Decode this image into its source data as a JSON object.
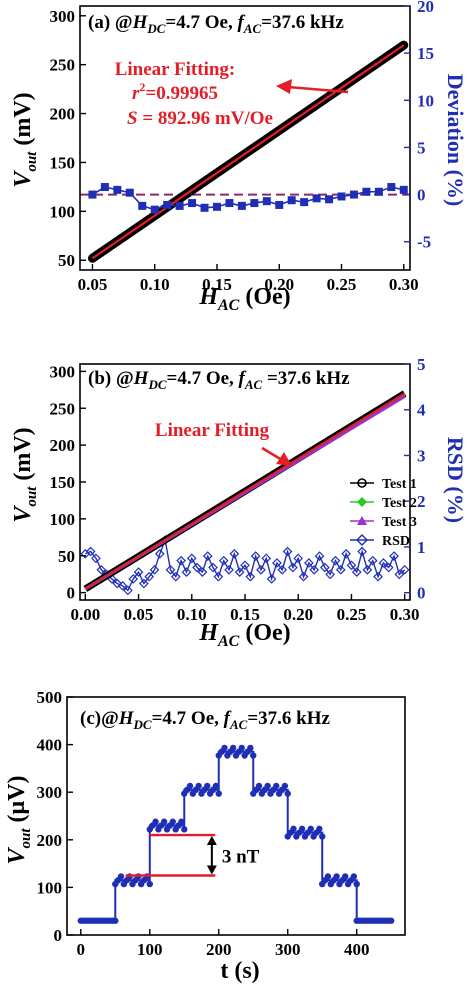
{
  "colors": {
    "black": "#000000",
    "red": "#e41e26",
    "blue": "#1f2fb5",
    "green": "#22cc22",
    "purple": "#9933cc",
    "dashed_purple": "#8a2a6a"
  },
  "chart_data": [
    {
      "type": "line",
      "panel_label": "(a) @H",
      "panel_title_parts": [
        "(a) @",
        "H",
        "DC",
        "=4.7 Oe, ",
        "f",
        "AC",
        "=37.6 kHz"
      ],
      "xlabel": "H",
      "xlabel_sub": "AC",
      "xlabel_unit": " (Oe)",
      "ylabel": "V",
      "ylabel_sub": "out",
      "ylabel_unit": " (mV)",
      "y2label": "Deviation (%)",
      "xlim": [
        0.04,
        0.305
      ],
      "ylim": [
        40,
        310
      ],
      "y2lim": [
        -8,
        20
      ],
      "xticks": [
        0.05,
        0.1,
        0.15,
        0.2,
        0.25,
        0.3
      ],
      "xtick_labels": [
        "0.05",
        "0.10",
        "0.15",
        "0.20",
        "0.25",
        "0.30"
      ],
      "yticks": [
        50,
        100,
        150,
        200,
        250,
        300
      ],
      "ytick_labels": [
        "50",
        "100",
        "150",
        "200",
        "250",
        "300"
      ],
      "y2ticks": [
        -5,
        0,
        5,
        10,
        15,
        20
      ],
      "y2tick_labels": [
        "-5",
        "0",
        "5",
        "10",
        "15",
        "20"
      ],
      "annotation_lines": [
        "Linear Fitting:",
        "r²=0.99965",
        "S = 892.96 mV/Oe"
      ],
      "r2_parts": [
        "r",
        "2",
        "=0.99965"
      ],
      "s_parts": [
        "S",
        " = 892.96 mV/Oe"
      ],
      "series": [
        {
          "axis": "left",
          "x_start": 0.05,
          "x_end": 0.3,
          "y_start": 52,
          "y_end": 270
        },
        {
          "name": "Linear Fitting",
          "axis": "left",
          "x_start": 0.05,
          "x_end": 0.3,
          "y_start": 52,
          "y_end": 270
        },
        {
          "axis": "right",
          "x": [
            0.05,
            0.06,
            0.07,
            0.08,
            0.09,
            0.1,
            0.11,
            0.12,
            0.13,
            0.14,
            0.15,
            0.16,
            0.17,
            0.18,
            0.19,
            0.2,
            0.21,
            0.22,
            0.23,
            0.24,
            0.25,
            0.26,
            0.27,
            0.28,
            0.29,
            0.3
          ],
          "values": [
            0,
            0.8,
            0.5,
            0.2,
            -1.2,
            -1.6,
            -1.1,
            -1.2,
            -0.9,
            -1.4,
            -1.3,
            -0.9,
            -1.2,
            -0.9,
            -0.7,
            -1.1,
            -0.6,
            -0.8,
            -0.4,
            -0.5,
            -0.2,
            0,
            0.3,
            0.3,
            0.8,
            0.5
          ]
        },
        {
          "axis": "right",
          "constant": 0
        }
      ]
    },
    {
      "type": "line",
      "panel_title_parts": [
        "(b) @",
        "H",
        "DC",
        "=4.7 Oe, ",
        "f",
        "AC",
        " =37.6 kHz"
      ],
      "xlabel": "H",
      "xlabel_sub": "AC",
      "xlabel_unit": " (Oe)",
      "ylabel": "V",
      "ylabel_sub": "out",
      "ylabel_unit": " (mV)",
      "y2label": "RSD (%)",
      "xlim": [
        -0.005,
        0.305
      ],
      "ylim": [
        -10,
        310
      ],
      "y2lim": [
        -0.16,
        5
      ],
      "xticks": [
        0.0,
        0.05,
        0.1,
        0.15,
        0.2,
        0.25,
        0.3
      ],
      "xtick_labels": [
        "0.00",
        "0.05",
        "0.10",
        "0.15",
        "0.20",
        "0.25",
        "0.30"
      ],
      "yticks": [
        0,
        50,
        100,
        150,
        200,
        250,
        300
      ],
      "ytick_labels": [
        "0",
        "50",
        "100",
        "150",
        "200",
        "250",
        "300"
      ],
      "y2ticks": [
        0,
        1,
        2,
        3,
        4,
        5
      ],
      "y2tick_labels": [
        "0",
        "1",
        "2",
        "3",
        "4",
        "5"
      ],
      "annotation": "Linear Fitting",
      "legend": [
        "Test 1",
        "Test 2",
        "Test 3",
        "RSD"
      ],
      "legend_position": "right-middle",
      "series": [
        {
          "name": "Test 1",
          "axis": "left",
          "x_start": 0.0,
          "x_end": 0.3,
          "y_start": 5,
          "y_end": 270
        },
        {
          "name": "Test 2",
          "axis": "left",
          "x_start": 0.0,
          "x_end": 0.3,
          "y_start": 5,
          "y_end": 268
        },
        {
          "name": "Test 3",
          "axis": "left",
          "x_start": 0.0,
          "x_end": 0.3,
          "y_start": 5,
          "y_end": 266
        },
        {
          "name": "Linear Fitting",
          "axis": "left",
          "x_start": 0.0,
          "x_end": 0.3,
          "y_start": 5,
          "y_end": 270
        },
        {
          "name": "RSD",
          "axis": "right",
          "x": [
            0.0,
            0.005,
            0.01,
            0.015,
            0.02,
            0.025,
            0.03,
            0.035,
            0.04,
            0.045,
            0.05,
            0.055,
            0.06,
            0.065,
            0.07,
            0.075,
            0.08,
            0.085,
            0.09,
            0.095,
            0.1,
            0.105,
            0.11,
            0.115,
            0.12,
            0.125,
            0.13,
            0.135,
            0.14,
            0.145,
            0.15,
            0.155,
            0.16,
            0.165,
            0.17,
            0.175,
            0.18,
            0.185,
            0.19,
            0.195,
            0.2,
            0.205,
            0.21,
            0.215,
            0.22,
            0.225,
            0.23,
            0.235,
            0.24,
            0.245,
            0.25,
            0.255,
            0.26,
            0.265,
            0.27,
            0.275,
            0.28,
            0.285,
            0.29,
            0.295,
            0.3
          ],
          "values": [
            0.85,
            0.9,
            0.75,
            0.5,
            0.4,
            0.3,
            0.2,
            0.15,
            0.05,
            0.3,
            0.45,
            0.2,
            0.35,
            0.5,
            0.85,
            1.15,
            0.5,
            0.35,
            0.7,
            0.45,
            0.75,
            0.55,
            0.45,
            0.8,
            0.55,
            0.35,
            0.7,
            0.5,
            0.85,
            0.45,
            0.6,
            0.35,
            0.8,
            0.5,
            0.75,
            0.3,
            0.65,
            0.5,
            0.9,
            0.55,
            0.75,
            0.35,
            0.65,
            0.5,
            0.8,
            0.55,
            0.4,
            0.7,
            0.5,
            0.85,
            0.6,
            0.45,
            0.9,
            0.5,
            0.7,
            0.35,
            0.65,
            0.55,
            0.8,
            0.4,
            0.5
          ]
        }
      ]
    },
    {
      "type": "line",
      "panel_title_parts": [
        "(c)@",
        "H",
        "DC",
        "=4.7 Oe, ",
        "f",
        "AC",
        "=37.6 kHz"
      ],
      "xlabel": "t (s)",
      "ylabel": "V",
      "ylabel_sub": "out",
      "ylabel_unit": " (μV)",
      "xlim": [
        -20,
        470
      ],
      "ylim": [
        0,
        500
      ],
      "xticks": [
        0,
        100,
        200,
        300,
        400
      ],
      "xtick_labels": [
        "0",
        "100",
        "200",
        "300",
        "400"
      ],
      "yticks": [
        0,
        100,
        200,
        300,
        400,
        500
      ],
      "ytick_labels": [
        "0",
        "100",
        "200",
        "300",
        "400",
        "500"
      ],
      "annotation": "3 nT",
      "reference_lines": [
        {
          "x_start": 65,
          "x_end": 195,
          "y": 125
        },
        {
          "x_start": 100,
          "x_end": 195,
          "y": 210
        }
      ],
      "series": [
        {
          "axis": "left",
          "steps": [
            {
              "t_start": 0,
              "t_end": 50,
              "level": 30
            },
            {
              "t_start": 50,
              "t_end": 100,
              "level": 115
            },
            {
              "t_start": 100,
              "t_end": 150,
              "level": 230
            },
            {
              "t_start": 150,
              "t_end": 200,
              "level": 305
            },
            {
              "t_start": 200,
              "t_end": 250,
              "level": 385
            },
            {
              "t_start": 250,
              "t_end": 300,
              "level": 305
            },
            {
              "t_start": 300,
              "t_end": 350,
              "level": 215
            },
            {
              "t_start": 350,
              "t_end": 400,
              "level": 115
            },
            {
              "t_start": 400,
              "t_end": 450,
              "level": 30
            }
          ]
        }
      ]
    }
  ]
}
